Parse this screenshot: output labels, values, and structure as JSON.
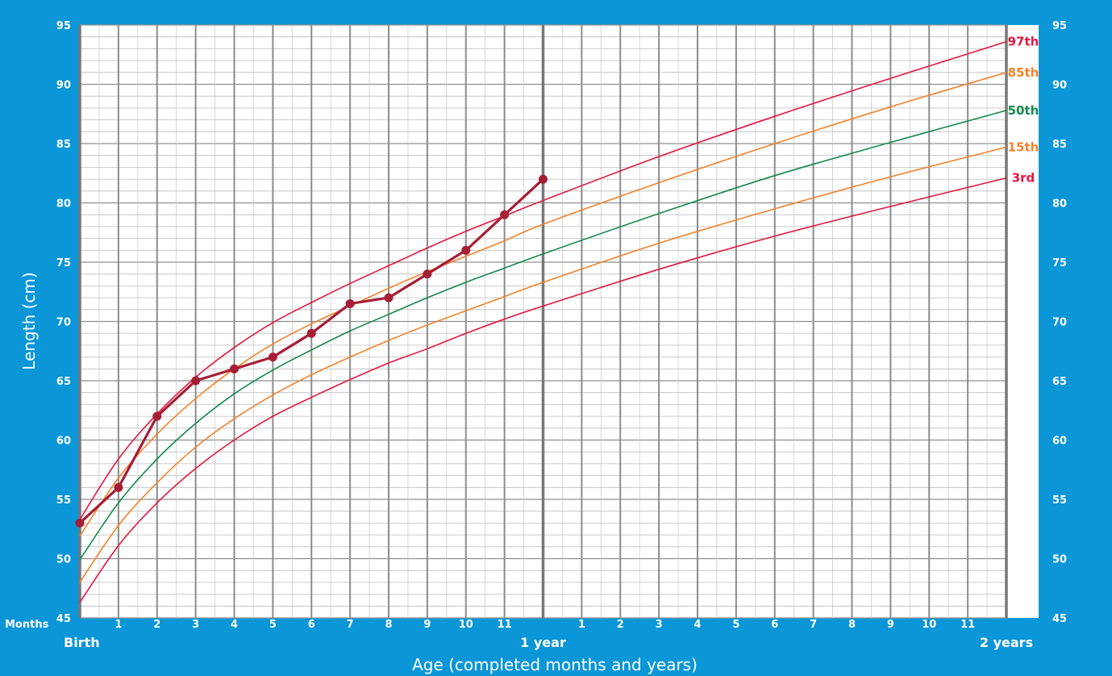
{
  "chart_data": {
    "type": "line",
    "title": "",
    "xlabel": "Age (completed months and years)",
    "ylabel": "Length (cm)",
    "months_label": "Months",
    "xlim": [
      0,
      24
    ],
    "ylim": [
      45,
      95
    ],
    "y_ticks": [
      45,
      50,
      55,
      60,
      65,
      70,
      75,
      80,
      85,
      90,
      95
    ],
    "x_month_ticks": [
      {
        "x": 1,
        "label": "1"
      },
      {
        "x": 2,
        "label": "2"
      },
      {
        "x": 3,
        "label": "3"
      },
      {
        "x": 4,
        "label": "4"
      },
      {
        "x": 5,
        "label": "5"
      },
      {
        "x": 6,
        "label": "6"
      },
      {
        "x": 7,
        "label": "7"
      },
      {
        "x": 8,
        "label": "8"
      },
      {
        "x": 9,
        "label": "9"
      },
      {
        "x": 10,
        "label": "10"
      },
      {
        "x": 11,
        "label": "11"
      },
      {
        "x": 13,
        "label": "1"
      },
      {
        "x": 14,
        "label": "2"
      },
      {
        "x": 15,
        "label": "3"
      },
      {
        "x": 16,
        "label": "4"
      },
      {
        "x": 17,
        "label": "5"
      },
      {
        "x": 18,
        "label": "6"
      },
      {
        "x": 19,
        "label": "7"
      },
      {
        "x": 20,
        "label": "8"
      },
      {
        "x": 21,
        "label": "9"
      },
      {
        "x": 22,
        "label": "10"
      },
      {
        "x": 23,
        "label": "11"
      }
    ],
    "x_milestones": [
      {
        "x": 0,
        "label": "Birth"
      },
      {
        "x": 12,
        "label": "1 year"
      },
      {
        "x": 24,
        "label": "2 years"
      }
    ],
    "grid": true,
    "percentile_curves": [
      {
        "name": "97th",
        "color": "#e4173f",
        "x": [
          0,
          1,
          2,
          3,
          4,
          5,
          6,
          7,
          8,
          9,
          10,
          11,
          12,
          15,
          18,
          21,
          24
        ],
        "y": [
          53.3,
          58.4,
          62.2,
          65.3,
          67.8,
          69.9,
          71.6,
          73.2,
          74.7,
          76.2,
          77.6,
          78.9,
          80.2,
          83.9,
          87.3,
          90.5,
          93.6
        ]
      },
      {
        "name": "85th",
        "color": "#f3822a",
        "x": [
          0,
          1,
          2,
          3,
          4,
          5,
          6,
          7,
          8,
          9,
          10,
          11,
          12,
          15,
          18,
          21,
          24
        ],
        "y": [
          51.9,
          56.8,
          60.5,
          63.5,
          66.0,
          68.1,
          69.8,
          71.3,
          72.8,
          74.2,
          75.5,
          76.8,
          78.2,
          81.7,
          85.0,
          88.1,
          91.0
        ]
      },
      {
        "name": "50th",
        "color": "#12894a",
        "x": [
          0,
          1,
          2,
          3,
          4,
          5,
          6,
          7,
          8,
          9,
          10,
          11,
          12,
          15,
          18,
          21,
          24
        ],
        "y": [
          49.9,
          54.7,
          58.4,
          61.4,
          63.9,
          65.9,
          67.6,
          69.2,
          70.6,
          72.0,
          73.3,
          74.5,
          75.7,
          79.1,
          82.3,
          85.1,
          87.8
        ]
      },
      {
        "name": "15th",
        "color": "#f3822a",
        "x": [
          0,
          1,
          2,
          3,
          4,
          5,
          6,
          7,
          8,
          9,
          10,
          11,
          12,
          15,
          18,
          21,
          24
        ],
        "y": [
          48.0,
          52.8,
          56.4,
          59.4,
          61.8,
          63.8,
          65.5,
          67.0,
          68.4,
          69.7,
          70.9,
          72.1,
          73.3,
          76.6,
          79.5,
          82.2,
          84.7
        ]
      },
      {
        "name": "3rd",
        "color": "#e4173f",
        "x": [
          0,
          1,
          2,
          3,
          4,
          5,
          6,
          7,
          8,
          9,
          10,
          11,
          12,
          15,
          18,
          21,
          24
        ],
        "y": [
          46.3,
          51.1,
          54.7,
          57.6,
          60.0,
          62.0,
          63.6,
          65.1,
          66.5,
          67.7,
          69.0,
          70.2,
          71.3,
          74.4,
          77.2,
          79.7,
          82.1
        ]
      }
    ],
    "measurements": {
      "color": "#a61e35",
      "x": [
        0,
        1,
        2,
        3,
        4,
        5,
        6,
        7,
        8,
        9,
        10,
        11,
        12
      ],
      "y": [
        53,
        56,
        62,
        65,
        66,
        67,
        69,
        71.5,
        72,
        74,
        76,
        79,
        82
      ]
    }
  }
}
